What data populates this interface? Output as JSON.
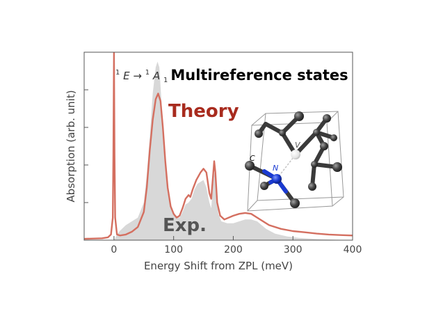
{
  "chart_data": {
    "type": "line",
    "title": "Multireference states",
    "transition_label": {
      "sup1": "1",
      "e": "E",
      "arrow": "→",
      "sup2": "1",
      "a": "A",
      "sub": "1"
    },
    "xlabel": "Energy Shift from ZPL (meV)",
    "ylabel": "Absorption (arb. unit)",
    "xlim": [
      -50,
      400
    ],
    "ylim": [
      0,
      1.0
    ],
    "x_ticks": [
      0,
      100,
      200,
      300,
      400
    ],
    "x_tick_labels": [
      "0",
      "100",
      "200",
      "300",
      "400"
    ],
    "y_ticks": [
      0.2,
      0.4,
      0.6,
      0.8
    ],
    "y_tick_labels_visible": false,
    "grid": false,
    "series": [
      {
        "name": "Theory",
        "style": "line",
        "color": "#d46f60",
        "points": [
          [
            -50,
            0.007
          ],
          [
            -20,
            0.01
          ],
          [
            -10,
            0.015
          ],
          [
            -5,
            0.03
          ],
          [
            -2,
            0.12
          ],
          [
            -1,
            0.45
          ],
          [
            0,
            1.0
          ],
          [
            1,
            0.45
          ],
          [
            2,
            0.12
          ],
          [
            5,
            0.03
          ],
          [
            10,
            0.025
          ],
          [
            20,
            0.03
          ],
          [
            30,
            0.045
          ],
          [
            40,
            0.07
          ],
          [
            50,
            0.15
          ],
          [
            55,
            0.28
          ],
          [
            60,
            0.48
          ],
          [
            65,
            0.64
          ],
          [
            70,
            0.75
          ],
          [
            74,
            0.78
          ],
          [
            78,
            0.74
          ],
          [
            82,
            0.6
          ],
          [
            86,
            0.42
          ],
          [
            90,
            0.28
          ],
          [
            95,
            0.18
          ],
          [
            100,
            0.14
          ],
          [
            105,
            0.12
          ],
          [
            110,
            0.13
          ],
          [
            115,
            0.17
          ],
          [
            120,
            0.22
          ],
          [
            125,
            0.24
          ],
          [
            128,
            0.23
          ],
          [
            132,
            0.27
          ],
          [
            138,
            0.32
          ],
          [
            145,
            0.36
          ],
          [
            150,
            0.38
          ],
          [
            155,
            0.36
          ],
          [
            160,
            0.25
          ],
          [
            163,
            0.22
          ],
          [
            166,
            0.34
          ],
          [
            168,
            0.42
          ],
          [
            170,
            0.36
          ],
          [
            173,
            0.2
          ],
          [
            178,
            0.13
          ],
          [
            185,
            0.11
          ],
          [
            200,
            0.13
          ],
          [
            210,
            0.14
          ],
          [
            220,
            0.145
          ],
          [
            230,
            0.14
          ],
          [
            240,
            0.12
          ],
          [
            260,
            0.08
          ],
          [
            280,
            0.06
          ],
          [
            300,
            0.048
          ],
          [
            320,
            0.042
          ],
          [
            340,
            0.035
          ],
          [
            360,
            0.03
          ],
          [
            380,
            0.027
          ],
          [
            400,
            0.025
          ]
        ]
      },
      {
        "name": "Exp.",
        "style": "filled",
        "color": "#d8d8d8",
        "points": [
          [
            -50,
            0.0
          ],
          [
            0,
            0.0
          ],
          [
            2,
            0.01
          ],
          [
            5,
            0.03
          ],
          [
            10,
            0.05
          ],
          [
            20,
            0.08
          ],
          [
            30,
            0.1
          ],
          [
            40,
            0.12
          ],
          [
            50,
            0.2
          ],
          [
            55,
            0.35
          ],
          [
            60,
            0.55
          ],
          [
            65,
            0.78
          ],
          [
            70,
            0.92
          ],
          [
            73,
            0.95
          ],
          [
            76,
            0.92
          ],
          [
            80,
            0.72
          ],
          [
            85,
            0.45
          ],
          [
            90,
            0.25
          ],
          [
            95,
            0.17
          ],
          [
            100,
            0.14
          ],
          [
            110,
            0.12
          ],
          [
            115,
            0.15
          ],
          [
            120,
            0.19
          ],
          [
            125,
            0.2
          ],
          [
            130,
            0.22
          ],
          [
            135,
            0.27
          ],
          [
            140,
            0.3
          ],
          [
            145,
            0.31
          ],
          [
            150,
            0.32
          ],
          [
            155,
            0.28
          ],
          [
            160,
            0.2
          ],
          [
            163,
            0.17
          ],
          [
            166,
            0.29
          ],
          [
            168,
            0.36
          ],
          [
            171,
            0.31
          ],
          [
            175,
            0.14
          ],
          [
            180,
            0.1
          ],
          [
            190,
            0.09
          ],
          [
            200,
            0.09
          ],
          [
            210,
            0.1
          ],
          [
            220,
            0.11
          ],
          [
            230,
            0.11
          ],
          [
            240,
            0.1
          ],
          [
            255,
            0.06
          ],
          [
            270,
            0.035
          ],
          [
            290,
            0.02
          ],
          [
            310,
            0.012
          ],
          [
            340,
            0.006
          ],
          [
            370,
            0.003
          ],
          [
            400,
            0.0
          ]
        ]
      }
    ],
    "annotations": {
      "theory_label": "Theory",
      "theory_color": "#a82b1e",
      "exp_label": "Exp.",
      "exp_color": "#555555"
    },
    "inset": {
      "atom_labels": {
        "carbon": "C",
        "nitrogen": "N",
        "vacancy": "V"
      },
      "carbon_color": "#3c3c3c",
      "nitrogen_color": "#1a3ad1",
      "vacancy_color": "#e6e6e6",
      "cell_color": "#999999"
    }
  }
}
